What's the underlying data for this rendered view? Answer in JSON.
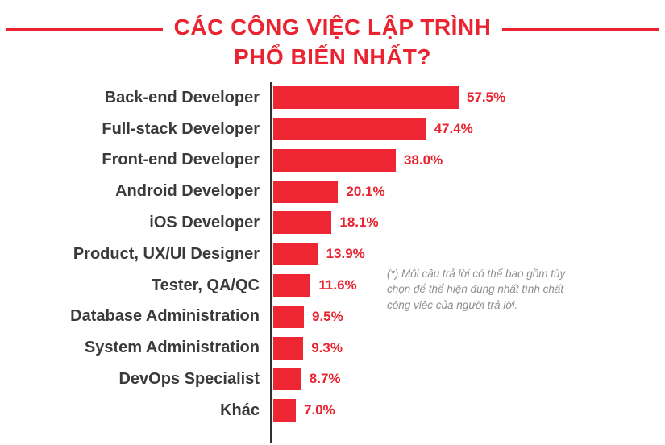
{
  "title": {
    "line1": "CÁC CÔNG VIỆC LẬP TRÌNH",
    "line2": "PHỔ BIẾN NHẤT?"
  },
  "note": "(*) Mỗi câu trả lời có thể bao gồm tùy chọn để thể hiện đúng nhất tính chất công việc của người trả lời.",
  "colors": {
    "title": "#e9232f",
    "bar": "#ee2533",
    "value": "#e9232f",
    "label_text": "#3a3a3a",
    "note_text": "#8e8e8e",
    "axis": "#2f2f2f"
  },
  "chart_data": {
    "type": "bar",
    "orientation": "horizontal",
    "title": "CÁC CÔNG VIỆC LẬP TRÌNH PHỔ BIẾN NHẤT?",
    "unit": "%",
    "xlim": [
      0,
      60
    ],
    "categories": [
      "Back-end Developer",
      "Full-stack Developer",
      "Front-end Developer",
      "Android Developer",
      "iOS Developer",
      "Product, UX/UI Designer",
      "Tester, QA/QC",
      "Database Administration",
      "System Administration",
      "DevOps Specialist",
      "Khác"
    ],
    "values": [
      57.5,
      47.4,
      38.0,
      20.1,
      18.1,
      13.9,
      11.6,
      9.5,
      9.3,
      8.7,
      7.0
    ],
    "value_labels": [
      "57.5%",
      "47.4%",
      "38.0%",
      "20.1%",
      "18.1%",
      "13.9%",
      "11.6%",
      "9.5%",
      "9.3%",
      "8.7%",
      "7.0%"
    ],
    "legend": [],
    "grid": false
  }
}
